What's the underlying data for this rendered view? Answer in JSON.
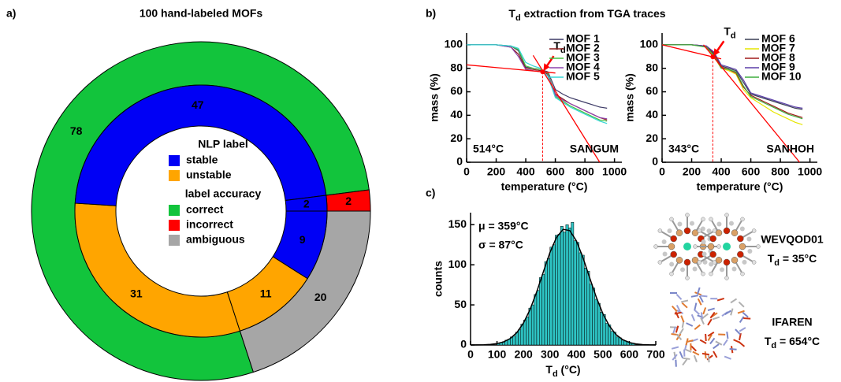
{
  "panel_labels": [
    "a)",
    "b)",
    "c)"
  ],
  "panel_b_title": {
    "symbol": "T",
    "sub": "d",
    "text": " extraction from TGA traces"
  },
  "structures": [
    {
      "name": "WEVQOD01",
      "td": {
        "symbol": "T",
        "sub": "d",
        "text": " = 35°C"
      }
    },
    {
      "name": "IFAREN",
      "td": {
        "symbol": "T",
        "sub": "d",
        "text": " = 654°C"
      }
    }
  ],
  "chart_data": [
    {
      "type": "donut",
      "title": "100 hand-labeled MOFs",
      "outer": {
        "values": [
          78,
          2,
          20
        ],
        "colors": [
          "#12c43c",
          "#ff0000",
          "#a6a6a6"
        ],
        "label_colors": [
          "#000000",
          "#000000",
          "#000000"
        ]
      },
      "inner": {
        "values": [
          31,
          47,
          2,
          9,
          11
        ],
        "colors": [
          "#ffa500",
          "#0000f5",
          "#0000f5",
          "#0000f5",
          "#ffa500"
        ],
        "label_colors": [
          "#000000",
          "#ffffff",
          "#ffffff",
          "#ffffff",
          "#000000"
        ]
      },
      "legend": {
        "groups": [
          {
            "title": "NLP label",
            "items": [
              {
                "name": "stable",
                "color": "#0000f5"
              },
              {
                "name": "unstable",
                "color": "#ffa500"
              }
            ]
          },
          {
            "title": "label accuracy",
            "items": [
              {
                "name": "correct",
                "color": "#12c43c"
              },
              {
                "name": "incorrect",
                "color": "#ff0000"
              },
              {
                "name": "ambiguous",
                "color": "#a6a6a6"
              }
            ]
          }
        ]
      }
    },
    {
      "type": "line",
      "xlabel": "temperature (°C)",
      "ylabel": "mass (%)",
      "xlim": [
        0,
        1050
      ],
      "ylim": [
        0,
        110
      ],
      "xticks": [
        0,
        200,
        400,
        600,
        800,
        1000
      ],
      "yticks": [
        0,
        20,
        40,
        60,
        80,
        100
      ],
      "legend": "upper right",
      "x": [
        0,
        100,
        200,
        300,
        350,
        400,
        450,
        500,
        550,
        600,
        650,
        700,
        750,
        800,
        850,
        900,
        950
      ],
      "series": [
        {
          "name": "MOF 1",
          "color": "#3d3a66",
          "values": [
            100,
            100,
            100,
            99,
            95,
            81,
            80,
            79,
            77,
            62,
            58,
            55,
            53,
            51,
            49,
            47,
            46
          ]
        },
        {
          "name": "MOF 2",
          "color": "#8b1a1a",
          "values": [
            100,
            100,
            100,
            98,
            92,
            80,
            79,
            78,
            75,
            58,
            54,
            50,
            47,
            44,
            41,
            38,
            36
          ]
        },
        {
          "name": "MOF 3",
          "color": "#44c044",
          "values": [
            100,
            100,
            100,
            99,
            96,
            82,
            80,
            79,
            76,
            56,
            52,
            48,
            45,
            42,
            39,
            36,
            35
          ]
        },
        {
          "name": "MOF 4",
          "color": "#8e44ad",
          "values": [
            100,
            100,
            100,
            98,
            90,
            79,
            78,
            77,
            74,
            57,
            53,
            50,
            47,
            44,
            41,
            38,
            37
          ]
        },
        {
          "name": "MOF 5",
          "color": "#33d6d6",
          "values": [
            100,
            100,
            100,
            99,
            97,
            85,
            82,
            80,
            73,
            55,
            51,
            47,
            44,
            41,
            38,
            35,
            33
          ]
        }
      ],
      "fit_lines": [
        {
          "color": "#ff0000",
          "x": [
            0,
            600
          ],
          "values": [
            83,
            76
          ]
        },
        {
          "color": "#ff0000",
          "x": [
            450,
            900
          ],
          "values": [
            91,
            0
          ]
        }
      ],
      "td": 514,
      "td_label": "514°C",
      "td_marker": {
        "symbol": "T",
        "sub": "d"
      },
      "annotation": "SANGUM"
    },
    {
      "type": "line",
      "xlabel": "temperature (°C)",
      "ylabel": "mass (%)",
      "xlim": [
        0,
        1050
      ],
      "ylim": [
        0,
        110
      ],
      "xticks": [
        0,
        200,
        400,
        600,
        800,
        1000
      ],
      "yticks": [
        0,
        20,
        40,
        60,
        80,
        100
      ],
      "legend": "upper right",
      "x": [
        0,
        100,
        200,
        300,
        350,
        400,
        450,
        500,
        550,
        600,
        650,
        700,
        750,
        800,
        850,
        900,
        950
      ],
      "series": [
        {
          "name": "MOF 6",
          "color": "#3a3f55",
          "values": [
            100,
            100,
            100,
            99,
            92,
            82,
            80,
            78,
            68,
            58,
            56,
            54,
            52,
            50,
            48,
            46,
            45
          ]
        },
        {
          "name": "MOF 7",
          "color": "#e6e600",
          "values": [
            100,
            100,
            100,
            98,
            90,
            80,
            78,
            75,
            62,
            55,
            51,
            47,
            43,
            40,
            37,
            34,
            32
          ]
        },
        {
          "name": "MOF 8",
          "color": "#a01c1c",
          "values": [
            100,
            100,
            100,
            99,
            93,
            81,
            79,
            76,
            64,
            57,
            54,
            51,
            48,
            45,
            42,
            40,
            38
          ]
        },
        {
          "name": "MOF 9",
          "color": "#5b3fa8",
          "values": [
            100,
            100,
            100,
            99,
            94,
            83,
            81,
            79,
            70,
            59,
            57,
            55,
            53,
            51,
            49,
            47,
            46
          ]
        },
        {
          "name": "MOF 10",
          "color": "#3fae3f",
          "values": [
            100,
            100,
            100,
            98,
            91,
            80,
            79,
            77,
            65,
            56,
            53,
            50,
            47,
            44,
            41,
            39,
            37
          ]
        }
      ],
      "fit_lines": [
        {
          "color": "#ff0000",
          "x": [
            0,
            400
          ],
          "values": [
            100,
            88
          ]
        },
        {
          "color": "#ff0000",
          "x": [
            280,
            930
          ],
          "values": [
            100,
            0
          ]
        }
      ],
      "td": 343,
      "td_label": "343°C",
      "td_marker": {
        "symbol": "T",
        "sub": "d"
      },
      "annotation": "SANHOH"
    },
    {
      "type": "histogram",
      "xlabel": {
        "symbol": "T",
        "sub": "d",
        "text": " (°C)"
      },
      "ylabel": "counts",
      "xlim": [
        0,
        700
      ],
      "ylim": [
        0,
        165
      ],
      "xticks": [
        0,
        100,
        200,
        300,
        400,
        500,
        600,
        700
      ],
      "yticks": [
        0,
        50,
        100,
        150
      ],
      "color": "#2ec4c4",
      "bins": [
        100,
        110,
        120,
        130,
        140,
        150,
        160,
        170,
        180,
        190,
        200,
        210,
        220,
        230,
        240,
        250,
        260,
        270,
        280,
        290,
        300,
        310,
        320,
        330,
        340,
        350,
        360,
        370,
        380,
        390,
        400,
        410,
        420,
        430,
        440,
        450,
        460,
        470,
        480,
        490,
        500,
        510,
        520,
        530,
        540,
        550,
        560,
        570,
        580,
        590,
        600,
        610,
        620
      ],
      "counts": [
        2,
        3,
        4,
        6,
        7,
        10,
        11,
        16,
        19,
        26,
        31,
        35,
        46,
        50,
        63,
        68,
        84,
        88,
        104,
        108,
        122,
        125,
        137,
        138,
        148,
        141,
        150,
        146,
        153,
        130,
        128,
        115,
        112,
        96,
        92,
        76,
        71,
        57,
        52,
        41,
        38,
        27,
        25,
        17,
        16,
        10,
        9,
        6,
        5,
        4,
        2,
        2
      ],
      "fit": {
        "color": "#000000",
        "x": [
          0,
          25,
          50,
          75,
          100,
          125,
          150,
          175,
          200,
          225,
          250,
          275,
          300,
          325,
          350,
          375,
          400,
          425,
          450,
          475,
          500,
          525,
          550,
          575,
          600,
          625,
          650,
          675,
          700
        ],
        "values": [
          0,
          0.1,
          0.3,
          0.7,
          1.7,
          3.9,
          8.1,
          15.5,
          27.3,
          44.3,
          66.1,
          91,
          115.2,
          134.3,
          144.2,
          142.6,
          129.8,
          108.7,
          83.9,
          59.6,
          39,
          23.5,
          13,
          6.7,
          3.1,
          1.4,
          0.5,
          0.2,
          0.1
        ]
      },
      "annotations": [
        "μ = 359°C",
        "σ = 87°C"
      ]
    }
  ]
}
